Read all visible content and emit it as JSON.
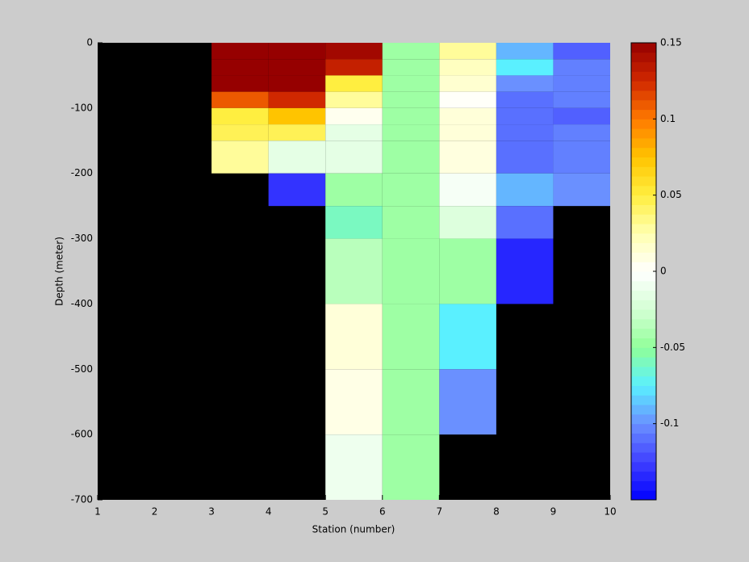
{
  "chart_data": {
    "type": "heatmap",
    "xlabel": "Station (number)",
    "ylabel": "Depth (meter)",
    "x": [
      1,
      2,
      3,
      4,
      5,
      6,
      7,
      8,
      9,
      10
    ],
    "y": [
      0,
      -25,
      -50,
      -75,
      -100,
      -125,
      -150,
      -200,
      -250,
      -300,
      -400,
      -500,
      -600,
      -700
    ],
    "z": [
      [
        null,
        null,
        0.15,
        0.15,
        0.145,
        -0.045,
        0.03,
        -0.09,
        -0.115
      ],
      [
        null,
        null,
        0.15,
        0.15,
        0.13,
        -0.045,
        0.02,
        -0.075,
        -0.105
      ],
      [
        null,
        null,
        0.15,
        0.15,
        0.05,
        -0.045,
        0.015,
        -0.1,
        -0.105
      ],
      [
        null,
        null,
        0.11,
        0.125,
        0.03,
        -0.045,
        0.002,
        -0.11,
        -0.105
      ],
      [
        null,
        null,
        0.05,
        0.075,
        0.005,
        -0.045,
        0.012,
        -0.11,
        -0.115
      ],
      [
        null,
        null,
        0.045,
        0.045,
        -0.015,
        -0.045,
        0.012,
        -0.11,
        -0.105
      ],
      [
        null,
        null,
        0.03,
        -0.015,
        -0.015,
        -0.045,
        0.01,
        -0.11,
        -0.105
      ],
      [
        null,
        null,
        null,
        -0.13,
        -0.045,
        -0.045,
        -0.005,
        -0.09,
        -0.1
      ],
      [
        null,
        null,
        null,
        null,
        -0.06,
        -0.045,
        -0.02,
        -0.11,
        null
      ],
      [
        null,
        null,
        null,
        null,
        -0.035,
        -0.045,
        -0.045,
        -0.135,
        null
      ],
      [
        null,
        null,
        null,
        null,
        0.012,
        -0.045,
        -0.075,
        null,
        null
      ],
      [
        null,
        null,
        null,
        null,
        0.008,
        -0.045,
        -0.1,
        null,
        null
      ],
      [
        null,
        null,
        null,
        null,
        -0.01,
        -0.045,
        null,
        null,
        null
      ]
    ],
    "xlim": [
      1,
      10
    ],
    "xticks": [
      1,
      2,
      3,
      4,
      5,
      6,
      7,
      8,
      9,
      10
    ],
    "ylim": [
      -700,
      0
    ],
    "yticks": [
      -700,
      -600,
      -500,
      -400,
      -300,
      -200,
      -100,
      0
    ],
    "clim": [
      -0.15,
      0.15
    ],
    "cticks": [
      -0.1,
      -0.05,
      0,
      0.05,
      0.1,
      0.15
    ],
    "colormap": [
      "#0000ff",
      "#4040ff",
      "#6a90ff",
      "#5af0ff",
      "#90ff98",
      "#d4ffd4",
      "#ffffff",
      "#ffffb0",
      "#ffee40",
      "#ffc400",
      "#ff7a00",
      "#d02800",
      "#960000"
    ],
    "missing_color": "#000000"
  }
}
